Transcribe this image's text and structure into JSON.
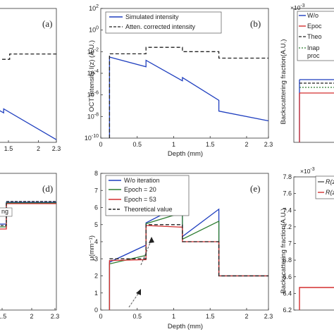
{
  "chart_data": [
    {
      "id": "a",
      "panel_label": "(a)",
      "type": "line",
      "xticks": [
        "1.5",
        "2",
        "2.3"
      ],
      "xlim": [
        1.3,
        2.3
      ],
      "ylim": [
        0,
        1
      ],
      "series": [
        {
          "style": "dashed",
          "color": "#222222",
          "x": [
            1.3,
            1.52,
            1.52,
            2.3
          ],
          "y": [
            0.62,
            0.62,
            0.66,
            0.66
          ]
        },
        {
          "style": "solid",
          "color": "#1f3fbf",
          "x": [
            1.3,
            1.42,
            1.42,
            2.3
          ],
          "y": [
            0.25,
            0.22,
            0.25,
            0.02
          ]
        }
      ]
    },
    {
      "id": "b",
      "panel_label": "(b)",
      "type": "line",
      "xlabel": "Depth (mm)",
      "ylabel": "OCT Intensity I(z) (A.U.)",
      "xlim": [
        0,
        2.3
      ],
      "ylim_log10": [
        -10,
        2
      ],
      "xticks": [
        "0",
        "0.5",
        "1",
        "1.5",
        "2",
        "2.3"
      ],
      "yticks": [
        "10^-10",
        "10^-8",
        "10^-6",
        "10^-4",
        "10^-2",
        "10^0",
        "10^2"
      ],
      "legend": [
        "Simulated intensity",
        "Atten. corrected intensity"
      ],
      "series": [
        {
          "name": "Simulated intensity",
          "style": "solid",
          "color": "#1f3fbf",
          "x": [
            0.12,
            0.12,
            0.62,
            0.62,
            1.12,
            1.12,
            1.62,
            1.62,
            2.3
          ],
          "log10_y": [
            -10,
            -2.5,
            -3.4,
            -2.8,
            -4.7,
            -4.4,
            -6.5,
            -7.5,
            -8.4
          ]
        },
        {
          "name": "Atten. corrected intensity",
          "style": "dashed",
          "color": "#222222",
          "x": [
            0.12,
            0.12,
            0.62,
            0.62,
            1.12,
            1.12,
            1.62,
            1.62,
            2.3
          ],
          "log10_y": [
            -10,
            -2.2,
            -2.2,
            -1.6,
            -1.6,
            -2.0,
            -2.0,
            -2.6,
            -2.6
          ]
        }
      ]
    },
    {
      "id": "c",
      "type": "line",
      "ylabel": "Backscattering fraction(A.U.)",
      "exponent": "×10^-3",
      "legend": [
        "W/o",
        "Epoc",
        "Theo",
        "Inap",
        "proc"
      ],
      "series": []
    },
    {
      "id": "d",
      "panel_label": "(d)",
      "type": "line",
      "xticks": [
        "1.5",
        "2",
        "2.3"
      ],
      "legend_fragment": "ng",
      "series": []
    },
    {
      "id": "e",
      "panel_label": "(e)",
      "type": "line",
      "xlabel": "Depth (mm)",
      "ylabel": "μ(mm⁻¹)",
      "xlim": [
        0,
        2.3
      ],
      "ylim": [
        0,
        8
      ],
      "xticks": [
        "0",
        "0.5",
        "1",
        "1.5",
        "2",
        "2.3"
      ],
      "yticks": [
        "0",
        "1",
        "2",
        "3",
        "4",
        "5",
        "6",
        "7",
        "8"
      ],
      "legend": [
        "W/o iteration",
        "Epoch = 20",
        "Epoch = 53",
        "Theoretical value"
      ],
      "series": [
        {
          "name": "W/o iteration",
          "style": "solid",
          "color": "#1f3fbf",
          "x": [
            0.12,
            0.12,
            0.62,
            0.62,
            1.12,
            1.12,
            1.62,
            1.62,
            2.3
          ],
          "y": [
            0,
            2.8,
            3.8,
            5.1,
            6.2,
            4.3,
            5.9,
            2.0,
            2.0
          ]
        },
        {
          "name": "Epoch = 20",
          "style": "solid",
          "color": "#2e7d32",
          "x": [
            0.12,
            0.12,
            0.62,
            0.62,
            1.12,
            1.12,
            1.62,
            1.62,
            2.3
          ],
          "y": [
            0,
            2.7,
            3.2,
            5.05,
            5.7,
            4.15,
            5.2,
            2.0,
            2.0
          ]
        },
        {
          "name": "Epoch = 53",
          "style": "solid",
          "color": "#d32f2f",
          "x": [
            0.12,
            0.12,
            0.62,
            0.62,
            1.12,
            1.12,
            1.62,
            1.62,
            2.3
          ],
          "y": [
            0,
            2.9,
            2.95,
            4.95,
            4.85,
            4.0,
            4.0,
            2.0,
            2.0
          ]
        },
        {
          "name": "Theoretical value",
          "style": "dashed",
          "color": "#222222",
          "x": [
            0.12,
            0.12,
            0.62,
            0.62,
            1.12,
            1.12,
            1.62,
            1.62,
            2.3
          ],
          "y": [
            3.0,
            3.0,
            3.0,
            5.0,
            5.0,
            4.0,
            4.0,
            2.0,
            2.0
          ]
        }
      ]
    },
    {
      "id": "f",
      "type": "line",
      "ylabel": "Backscattering fraction(A.U.)",
      "exponent": "×10^-3",
      "ylim": [
        6.2,
        7.8
      ],
      "yticks": [
        "6.2",
        "6.4",
        "6.6",
        "6.8",
        "7",
        "7.2",
        "7.4",
        "7.6",
        "7.8"
      ],
      "legend": [
        "R(z)",
        "R(z)"
      ],
      "series": []
    }
  ]
}
